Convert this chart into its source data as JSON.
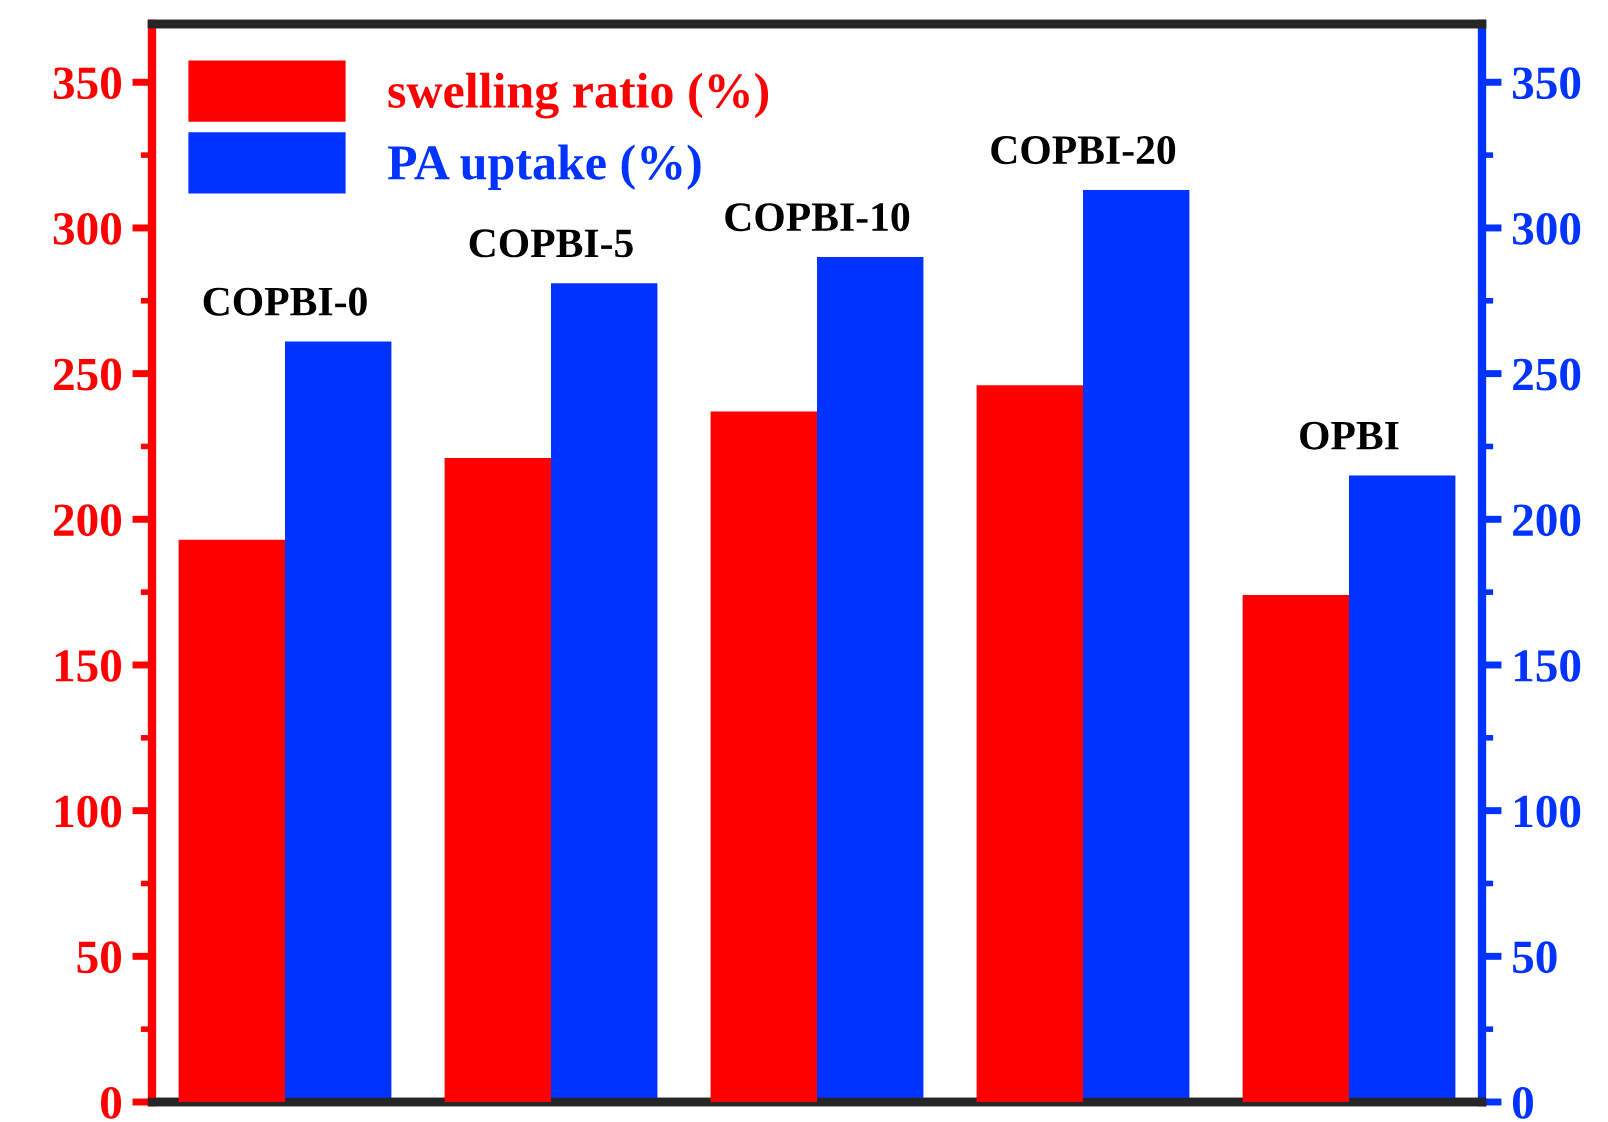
{
  "chart_data": {
    "type": "bar",
    "categories": [
      "COPBI-0",
      "COPBI-5",
      "COPBI-10",
      "COPBI-20",
      "OPBI"
    ],
    "series": [
      {
        "name": "swelling ratio (%)",
        "color": "#ff0000",
        "values": [
          193,
          221,
          237,
          246,
          174
        ]
      },
      {
        "name": "PA uptake (%)",
        "color": "#0033ff",
        "axis": "y2",
        "values": [
          261,
          281,
          290,
          313,
          215
        ]
      }
    ],
    "ylim": [
      0,
      370
    ],
    "yticks": [
      0,
      {
        "value": 25,
        "label": null
      },
      50,
      {
        "value": 75,
        "label": null
      },
      100,
      {
        "value": 125,
        "label": null
      },
      150,
      {
        "value": 175,
        "label": null
      },
      200,
      {
        "value": 225,
        "label": null
      },
      250,
      {
        "value": 275,
        "label": null
      },
      300,
      {
        "value": 325,
        "label": null
      },
      350
    ],
    "y2lim": [
      0,
      370
    ],
    "y2ticks": [
      0,
      {
        "value": 25,
        "label": null
      },
      50,
      {
        "value": 75,
        "label": null
      },
      100,
      {
        "value": 125,
        "label": null
      },
      150,
      {
        "value": 175,
        "label": null
      },
      200,
      {
        "value": 225,
        "label": null
      },
      250,
      {
        "value": 275,
        "label": null
      },
      300,
      {
        "value": 325,
        "label": null
      },
      350
    ],
    "legend": "top left",
    "grid": false
  }
}
